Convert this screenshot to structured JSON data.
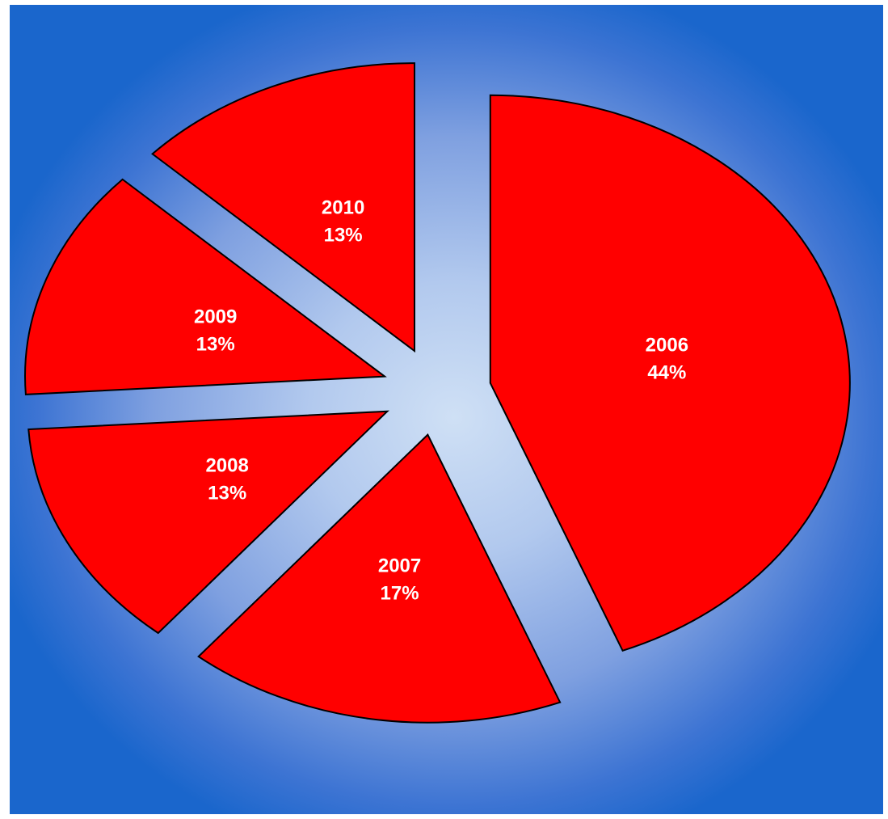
{
  "chart_data": {
    "type": "pie",
    "exploded": true,
    "categories": [
      "2006",
      "2007",
      "2008",
      "2009",
      "2010"
    ],
    "values": [
      44,
      17,
      13,
      13,
      13
    ],
    "data_labels": [
      "44%",
      "17%",
      "13%",
      "13%",
      "13%"
    ],
    "title": "",
    "legend": "none",
    "colors": {
      "slice_fill": "#ff0000",
      "slice_outline": "#000000",
      "label_text": "#ffffff",
      "background_center": "#cfe0f5",
      "background_edge": "#1a66cc"
    }
  }
}
